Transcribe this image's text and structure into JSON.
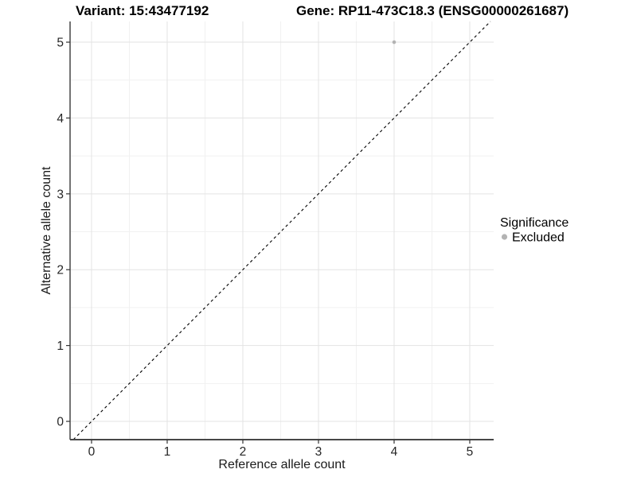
{
  "chart_data": {
    "type": "scatter",
    "title_left": "Variant: 15:43477192",
    "title_right": "Gene: RP11-473C18.3 (ENSG00000261687)",
    "xlabel": "Reference allele count",
    "ylabel": "Alternative allele count",
    "xticks": [
      "0",
      "1",
      "2",
      "3",
      "4",
      "5"
    ],
    "xtick_values": [
      0,
      1,
      2,
      3,
      4,
      5
    ],
    "yticks": [
      "0",
      "1",
      "2",
      "3",
      "4",
      "5"
    ],
    "ytick_values": [
      0,
      1,
      2,
      3,
      4,
      5
    ],
    "xlim": [
      -0.284,
      5.316
    ],
    "ylim": [
      -0.241,
      5.273
    ],
    "grid": "major+minor",
    "points": [
      {
        "x": 4,
        "y": 5,
        "significance": "Excluded"
      }
    ],
    "identity_line": {
      "slope": 1,
      "intercept": 0,
      "style": "dashed"
    },
    "legend": {
      "title": "Significance",
      "position": "right",
      "items": [
        {
          "label": "Excluded",
          "color": "#b3b3b3"
        }
      ]
    }
  },
  "colors": {
    "background": "#ffffff",
    "grid_major": "#e3e3e3",
    "grid_minor": "#f1f1f1",
    "axis_line": "#474747",
    "tick_mark": "#333333",
    "identity_line": "#000000",
    "point_excluded": "#b3b3b3"
  }
}
